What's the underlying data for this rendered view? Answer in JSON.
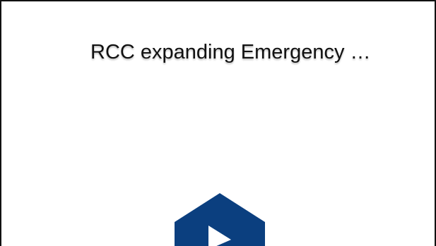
{
  "video": {
    "title": "RCC expanding Emergency …",
    "play_icon": "play-icon",
    "brand_color": "#0b3f7f",
    "play_glyph_color": "#ffffff"
  }
}
